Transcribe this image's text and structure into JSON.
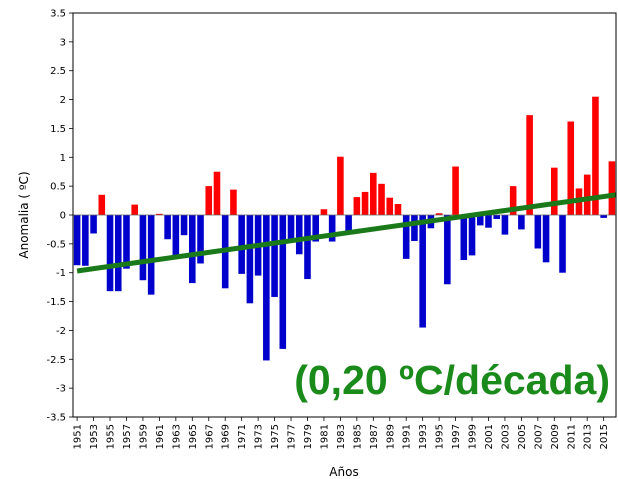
{
  "chart_data": {
    "type": "bar",
    "xlabel": "Años",
    "ylabel": "Anomalia ( ºC)",
    "ylim": [
      -3.5,
      3.5
    ],
    "yticks": [
      3.5,
      3,
      2.5,
      2,
      1.5,
      1,
      0.5,
      0,
      -0.5,
      -1,
      -1.5,
      -2,
      -2.5,
      -3,
      -3.5
    ],
    "xticks": [
      "1951",
      "1953",
      "1955",
      "1957",
      "1959",
      "1961",
      "1963",
      "1965",
      "1967",
      "1969",
      "1971",
      "1973",
      "1975",
      "1977",
      "1979",
      "1981",
      "1983",
      "1985",
      "1987",
      "1989",
      "1991",
      "1993",
      "1995",
      "1997",
      "1999",
      "2001",
      "2003",
      "2005",
      "2007",
      "2009",
      "2011",
      "2013",
      "2015"
    ],
    "grid": false,
    "years": [
      1951,
      1952,
      1953,
      1954,
      1955,
      1956,
      1957,
      1958,
      1959,
      1960,
      1961,
      1962,
      1963,
      1964,
      1965,
      1966,
      1967,
      1968,
      1969,
      1970,
      1971,
      1972,
      1973,
      1974,
      1975,
      1976,
      1977,
      1978,
      1979,
      1980,
      1981,
      1982,
      1983,
      1984,
      1985,
      1986,
      1987,
      1988,
      1989,
      1990,
      1991,
      1992,
      1993,
      1994,
      1995,
      1996,
      1997,
      1998,
      1999,
      2000,
      2001,
      2002,
      2003,
      2004,
      2005,
      2006,
      2007,
      2008,
      2009,
      2010,
      2011,
      2012,
      2013,
      2014,
      2015,
      2016
    ],
    "values": [
      -0.87,
      -0.88,
      -0.32,
      0.35,
      -1.32,
      -1.32,
      -0.93,
      0.18,
      -1.13,
      -1.38,
      0.02,
      -0.42,
      -0.73,
      -0.35,
      -1.18,
      -0.84,
      0.5,
      0.75,
      -1.27,
      0.44,
      -1.02,
      -1.53,
      -1.05,
      -2.52,
      -1.42,
      -2.32,
      -0.44,
      -0.68,
      -1.11,
      -0.46,
      0.1,
      -0.46,
      1.01,
      -0.28,
      0.31,
      0.4,
      0.73,
      0.54,
      0.3,
      0.19,
      -0.76,
      -0.45,
      -1.95,
      -0.23,
      0.03,
      -1.2,
      0.84,
      -0.78,
      -0.7,
      -0.18,
      -0.22,
      -0.07,
      -0.34,
      0.5,
      -0.25,
      1.73,
      -0.58,
      -0.82,
      0.82,
      -1.0,
      1.62,
      0.46,
      0.7,
      2.05,
      -0.05,
      0.93
    ],
    "positive_color": "#ff0000",
    "negative_color": "#0000cc",
    "trend": {
      "start": [
        1951,
        -0.97
      ],
      "end": [
        2016.5,
        0.35
      ],
      "color": "#1a7a1a",
      "label": "(0,20 ºC/década)",
      "label_color": "#1a8a1a"
    }
  }
}
